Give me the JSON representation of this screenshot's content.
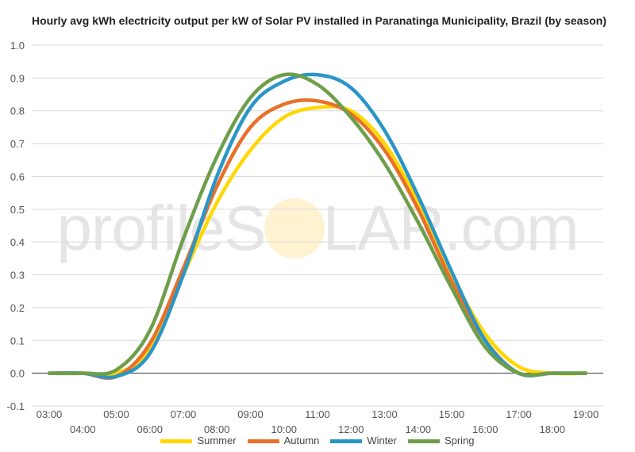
{
  "chart_data": {
    "type": "line",
    "title": "Hourly avg kWh electricity output per kW of Solar PV installed in Paranatinga Municipality, Brazil (by season)",
    "xlabel": "",
    "ylabel": "",
    "ylim": [
      -0.1,
      1.0
    ],
    "yticks": [
      "-0.1",
      "0.0",
      "0.1",
      "0.2",
      "0.3",
      "0.4",
      "0.5",
      "0.6",
      "0.7",
      "0.8",
      "0.9",
      "1.0"
    ],
    "x": [
      "03:00",
      "04:00",
      "05:00",
      "06:00",
      "07:00",
      "08:00",
      "09:00",
      "10:00",
      "11:00",
      "12:00",
      "13:00",
      "14:00",
      "15:00",
      "16:00",
      "17:00",
      "18:00",
      "19:00"
    ],
    "grid": true,
    "legend_position": "bottom",
    "series": [
      {
        "name": "Summer",
        "color": "#FFD700",
        "values": [
          0.0,
          0.0,
          0.0,
          0.07,
          0.3,
          0.52,
          0.68,
          0.78,
          0.81,
          0.8,
          0.7,
          0.52,
          0.3,
          0.12,
          0.02,
          0.0,
          0.0
        ]
      },
      {
        "name": "Autumn",
        "color": "#E8702A",
        "values": [
          0.0,
          0.0,
          -0.01,
          0.09,
          0.32,
          0.57,
          0.75,
          0.82,
          0.83,
          0.79,
          0.68,
          0.5,
          0.28,
          0.1,
          0.0,
          0.0,
          0.0
        ]
      },
      {
        "name": "Winter",
        "color": "#2A96C8",
        "values": [
          0.0,
          0.0,
          -0.01,
          0.06,
          0.3,
          0.6,
          0.81,
          0.89,
          0.91,
          0.87,
          0.74,
          0.54,
          0.31,
          0.1,
          0.0,
          0.0,
          0.0
        ]
      },
      {
        "name": "Spring",
        "color": "#6E9E4A",
        "values": [
          0.0,
          0.0,
          0.01,
          0.13,
          0.41,
          0.66,
          0.84,
          0.91,
          0.88,
          0.78,
          0.64,
          0.46,
          0.26,
          0.08,
          0.0,
          0.0,
          0.0
        ]
      }
    ]
  },
  "watermark": {
    "left": "profileS",
    "right": "LAR.com"
  }
}
